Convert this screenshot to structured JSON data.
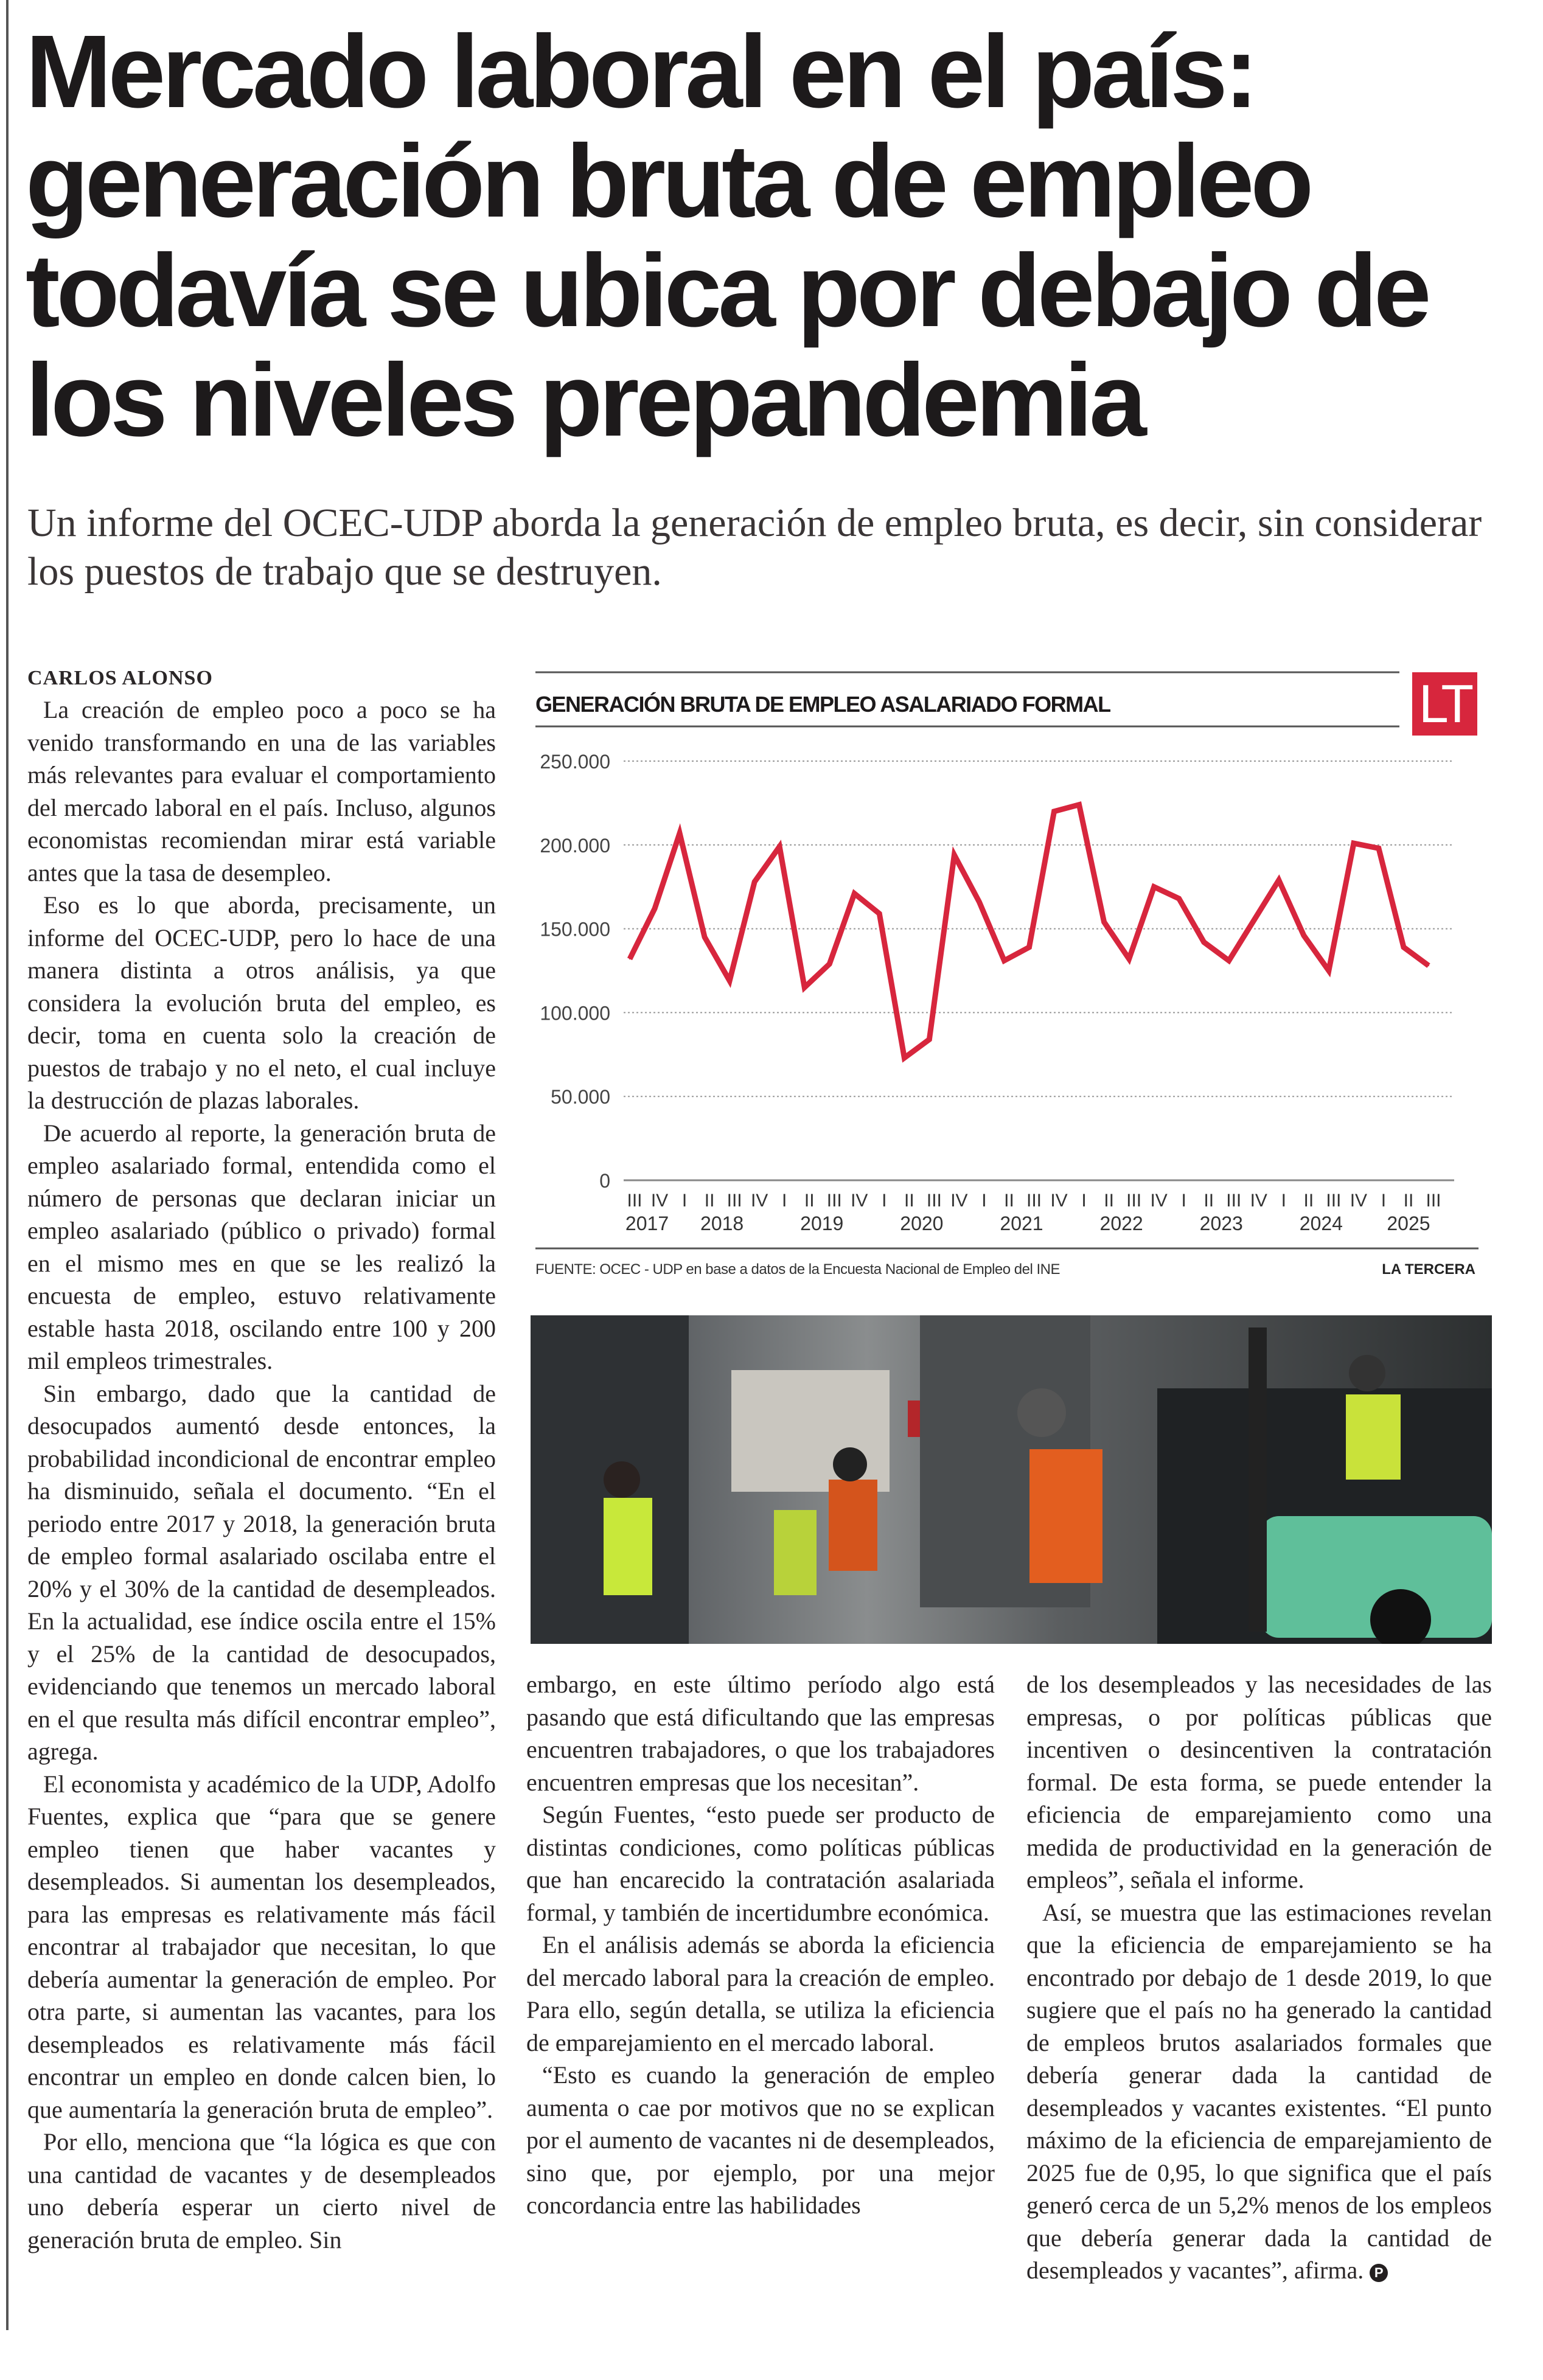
{
  "article": {
    "title": "Mercado laboral en el país: generación bruta de empleo todavía se ubica por debajo de los niveles prepandemia",
    "title_lines": [
      "Mercado laboral en el país:",
      "generación bruta de empleo",
      "todavía se ubica por debajo de",
      "los niveles prepandemia"
    ],
    "subtitle": "Un informe del OCEC-UDP aborda la generación de empleo bruta, es decir, sin considerar los puestos de trabajo que se destruyen.",
    "byline": "CARLOS ALONSO",
    "end_mark": "P",
    "columns": [
      [
        "La creación de empleo poco a poco se ha venido transformando en una de las variables más relevantes para evaluar el comportamiento del mercado laboral en el país. Incluso, algunos economistas recomiendan mirar está variable antes que la tasa de desempleo.",
        "Eso es lo que aborda, precisamente, un informe del OCEC-UDP, pero lo hace de una manera distinta a otros análisis, ya que considera la evolución bruta del empleo, es decir, toma en cuenta solo la creación de puestos de trabajo y no el neto, el cual incluye la destrucción de plazas laborales.",
        "De acuerdo al reporte, la generación bruta de empleo asalariado formal, entendida como el número de personas que declaran iniciar un empleo asalariado (público o privado) formal en el mismo mes en que se les realizó la encuesta de empleo, estuvo relativamente estable hasta 2018, oscilando entre 100 y 200 mil empleos trimestrales.",
        "Sin embargo, dado que la cantidad de desocupados aumentó desde entonces, la probabilidad incondicional de encontrar empleo ha disminuido, señala el documento. “En el periodo entre 2017 y 2018, la generación bruta de empleo formal asalariado oscilaba entre el 20% y el 30% de la cantidad de desempleados. En la actualidad, ese índice oscila entre el 15% y el 25% de la cantidad de desocupados, evidenciando que tenemos un mercado laboral en el que resulta más difícil encontrar empleo”, agrega.",
        "El economista y académico de la UDP, Adolfo Fuentes, explica que “para que se genere empleo tienen que haber vacantes y desempleados. Si aumentan los desempleados, para las empresas es relativamente más fácil encontrar al trabajador que necesitan, lo que debería aumentar la generación de empleo. Por otra parte, si aumentan las vacantes, para los desempleados es relativamente más fácil encontrar un empleo en donde calcen bien, lo que aumentaría la generación bruta de empleo”.",
        "Por ello, menciona que “la lógica es que con una cantidad de vacantes y de desempleados uno debería esperar un cierto nivel de generación bruta de empleo. Sin"
      ],
      [
        "embargo, en este último período algo está pasando que está dificultando que las empresas encuentren trabajadores, o que los trabajadores encuentren empresas que los necesitan”.",
        "Según Fuentes, “esto puede ser producto de distintas condiciones, como políticas públicas que han encarecido la contratación asalariada formal, y también de incertidumbre económica.",
        "En el análisis además se aborda la eficiencia del mercado laboral para la creación de empleo. Para ello, según detalla, se utiliza la eficiencia de emparejamiento en el mercado laboral.",
        "“Esto es cuando la generación de empleo aumenta o cae por motivos que no se explican por el aumento de vacantes ni de desempleados, sino que, por ejemplo, por una mejor concordancia entre las habilidades"
      ],
      [
        "de los desempleados y las necesidades de las empresas, o por políticas públicas que incentiven o desincentiven la contratación formal. De esta forma, se puede entender la eficiencia de emparejamiento como una medida de productividad en la generación de empleos”, señala el informe.",
        "Así, se muestra que las estimaciones revelan que la eficiencia de emparejamiento se ha encontrado por debajo de 1 desde 2019, lo que sugiere que el país no ha generado la cantidad de empleos brutos asalariados formales que debería generar dada la cantidad de desempleados y vacantes existentes. “El punto máximo de la eficiencia de emparejamiento de 2025 fue de 0,95, lo que significa que el país generó cerca de un 5,2% menos de los empleos que debería generar dada la cantidad de desempleados y vacantes”, afirma."
      ]
    ]
  },
  "colors": {
    "line": "#d7263d",
    "logo_bg": "#d7263d",
    "grid": "#999999",
    "text": "#231f20"
  },
  "chart_data": {
    "type": "line",
    "title": "GENERACIÓN BRUTA DE EMPLEO ASALARIADO FORMAL",
    "logo": "LT",
    "source": "FUENTE: OCEC - UDP en base a datos de la Encuesta Nacional de Empleo del INE",
    "credit": "LA TERCERA",
    "ylim": [
      0,
      250000
    ],
    "yticks": [
      0,
      50000,
      100000,
      150000,
      200000,
      250000
    ],
    "ytick_labels": [
      "0",
      "50.000",
      "100.000",
      "150.000",
      "200.000",
      "250.000"
    ],
    "grid": true,
    "quarters": [
      "III",
      "IV",
      "I",
      "II",
      "III",
      "IV",
      "I",
      "II",
      "III",
      "IV",
      "I",
      "II",
      "III",
      "IV",
      "I",
      "II",
      "III",
      "IV",
      "I",
      "II",
      "III",
      "IV",
      "I",
      "II",
      "III",
      "IV",
      "I",
      "II",
      "III",
      "IV",
      "I",
      "II",
      "III"
    ],
    "years": [
      {
        "label": "2017",
        "quarters": [
          "III",
          "IV"
        ]
      },
      {
        "label": "2018",
        "quarters": [
          "I",
          "II",
          "III",
          "IV"
        ]
      },
      {
        "label": "2019",
        "quarters": [
          "I",
          "II",
          "III",
          "IV"
        ]
      },
      {
        "label": "2020",
        "quarters": [
          "I",
          "II",
          "III",
          "IV"
        ]
      },
      {
        "label": "2021",
        "quarters": [
          "I",
          "II",
          "III",
          "IV"
        ]
      },
      {
        "label": "2022",
        "quarters": [
          "I",
          "II",
          "III",
          "IV"
        ]
      },
      {
        "label": "2023",
        "quarters": [
          "I",
          "II",
          "III",
          "IV"
        ]
      },
      {
        "label": "2024",
        "quarters": [
          "I",
          "II",
          "III",
          "IV"
        ]
      },
      {
        "label": "2025",
        "quarters": [
          "I",
          "II",
          "III"
        ]
      }
    ],
    "values": [
      132000,
      162000,
      207000,
      145000,
      119000,
      178000,
      199000,
      115000,
      129000,
      171000,
      159000,
      73000,
      84000,
      194000,
      166000,
      131000,
      139000,
      220000,
      224000,
      154000,
      132000,
      175000,
      168000,
      142000,
      131000,
      155000,
      179000,
      146000,
      125000,
      201000,
      198000,
      139000,
      128000
    ]
  },
  "photo": {
    "icon": "warehouse-workers-forklift-photo"
  }
}
